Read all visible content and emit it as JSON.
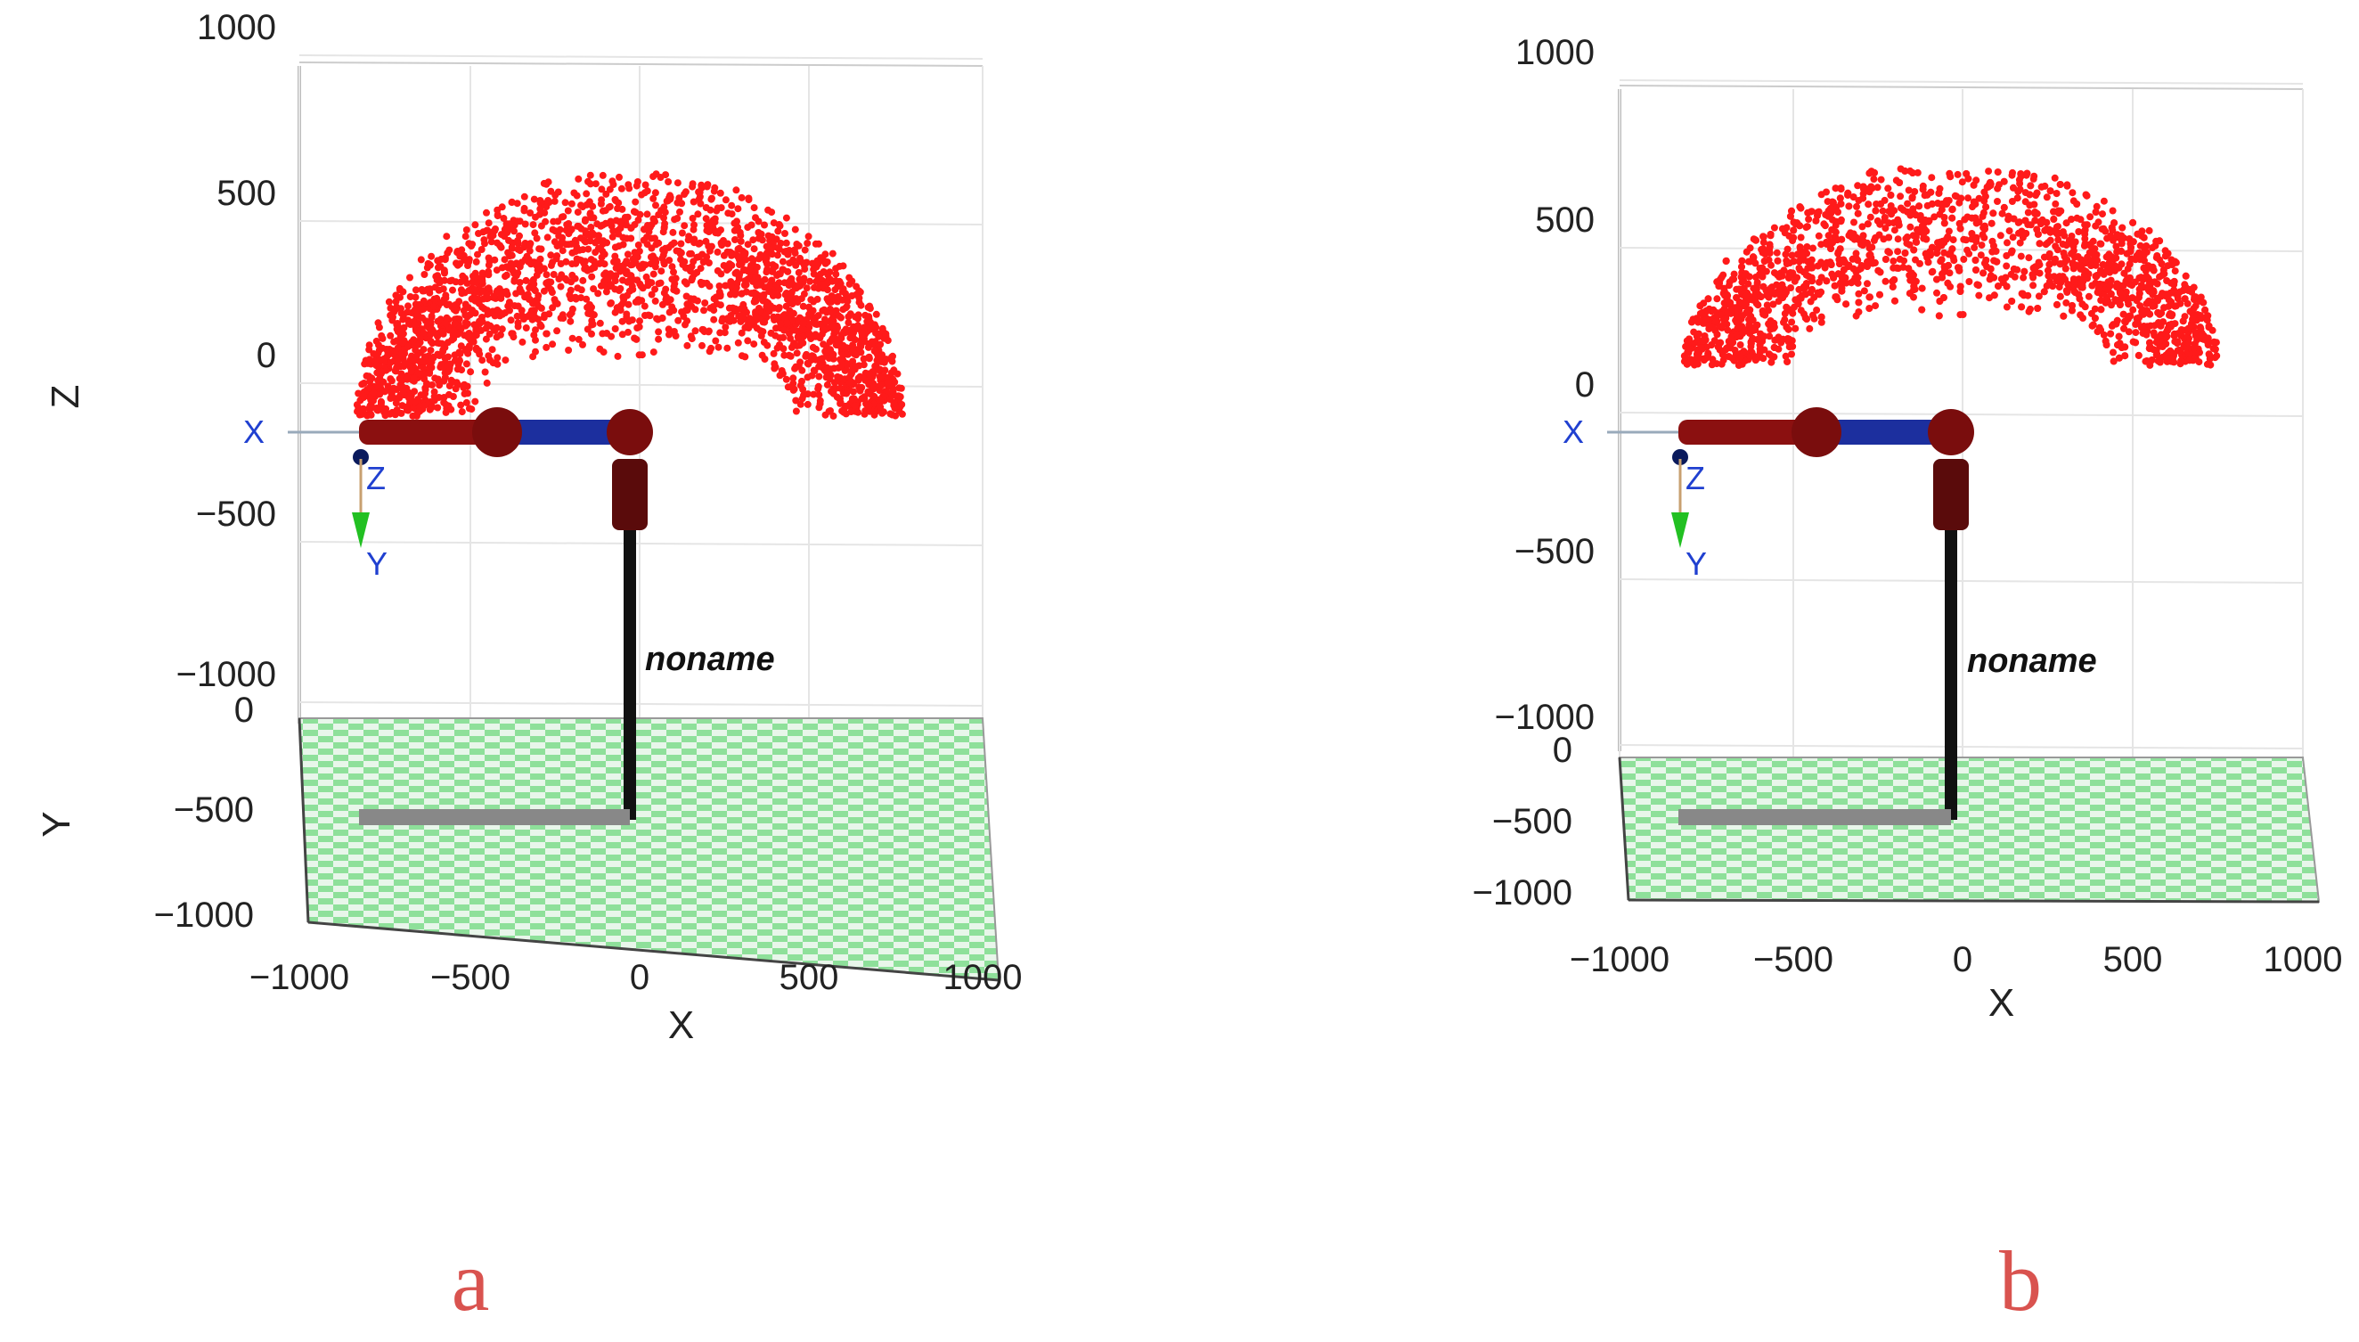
{
  "chart_data": [
    {
      "type": "scatter",
      "panel_label": "a",
      "robot_label": "noname",
      "frame_labels": [
        "X",
        "Z",
        "Y"
      ],
      "axes": {
        "x": {
          "label": "X",
          "ticks": [
            "−1000",
            "−500",
            "0",
            "500",
            "1000"
          ],
          "lim": [
            -1000,
            1000
          ]
        },
        "y": {
          "label": "Y",
          "ticks": [
            "0",
            "−500",
            "−1000"
          ],
          "lim": [
            -1000,
            0
          ]
        },
        "z": {
          "label": "Z",
          "ticks": [
            "1000",
            "500",
            "0",
            "−500",
            "−1000"
          ],
          "lim": [
            -1000,
            1000
          ]
        }
      },
      "grid": true,
      "series": [
        {
          "color": "#ff1a1a",
          "x_range": [
            -800,
            800
          ],
          "z_range": [
            0,
            700
          ]
        }
      ]
    },
    {
      "type": "scatter",
      "panel_label": "b",
      "robot_label": "noname",
      "frame_labels": [
        "X",
        "Z",
        "Y"
      ],
      "axes": {
        "x": {
          "label": "X",
          "ticks": [
            "−1000",
            "−500",
            "0",
            "500",
            "1000"
          ],
          "lim": [
            -1000,
            1000
          ]
        },
        "y": {
          "label": "",
          "ticks": [
            "0",
            "−500",
            "−1000"
          ],
          "lim": [
            -1000,
            0
          ]
        },
        "z": {
          "label": "",
          "ticks": [
            "1000",
            "500",
            "0",
            "−500",
            "−1000"
          ],
          "lim": [
            -1000,
            1000
          ]
        }
      },
      "grid": true,
      "series": [
        {
          "color": "#ff1a1a",
          "x_range": [
            -800,
            800
          ],
          "z_range": [
            0,
            700
          ]
        }
      ]
    }
  ]
}
